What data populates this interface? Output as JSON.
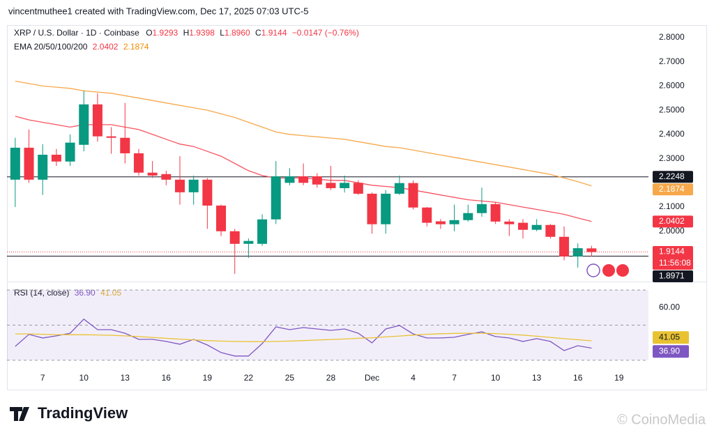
{
  "header": "vincentmuthee1 created with TradingView.com, Dec 17, 2025 07:03 UTC-5",
  "branding": "TradingView",
  "watermark": "© CoinoMedia",
  "chart_data": [
    {
      "type": "candlestick",
      "title": "XRP / U.S. Dollar · 1D · Coinbase",
      "ohlc": [
        {
          "label": "O",
          "value": "1.9293"
        },
        {
          "label": "H",
          "value": "1.9398"
        },
        {
          "label": "L",
          "value": "1.8960"
        },
        {
          "label": "C",
          "value": "1.9144"
        }
      ],
      "change": "−0.0147 (−0.76%)",
      "indicator": "EMA 20/50/100/200",
      "categories": [
        null,
        null,
        "7",
        null,
        null,
        "10",
        null,
        null,
        "13",
        null,
        null,
        "16",
        null,
        null,
        "19",
        null,
        null,
        "22",
        null,
        null,
        "25",
        null,
        null,
        "28",
        null,
        null,
        "Dec",
        null,
        null,
        "4",
        null,
        null,
        "7",
        null,
        null,
        "10",
        null,
        null,
        "13",
        null,
        null,
        "16",
        null,
        null,
        "19",
        null,
        null
      ],
      "open": [
        2.213,
        2.345,
        2.213,
        2.316,
        2.288,
        2.357,
        2.524,
        2.392,
        2.386,
        2.322,
        2.242,
        2.236,
        2.213,
        2.161,
        2.213,
        2.106,
        2.0,
        1.948,
        1.948,
        2.049,
        2.2,
        2.227,
        2.227,
        2.2,
        2.178,
        2.2,
        2.155,
        2.029,
        2.155,
        2.199,
        2.098,
        2.041,
        2.029,
        2.046,
        2.075,
        2.112,
        2.04,
        2.035,
        2.006,
        2.026,
        1.977,
        1.896,
        1.9293,
        null,
        null,
        null,
        null
      ],
      "high": [
        2.386,
        2.42,
        2.36,
        2.34,
        2.4,
        2.58,
        2.57,
        2.43,
        2.53,
        2.34,
        2.29,
        2.25,
        2.31,
        2.23,
        2.22,
        2.11,
        2.01,
        1.97,
        2.07,
        2.29,
        2.26,
        2.28,
        2.24,
        2.27,
        2.23,
        2.21,
        2.16,
        2.17,
        2.23,
        2.21,
        2.1,
        2.05,
        2.11,
        2.11,
        2.18,
        2.12,
        2.05,
        2.05,
        2.05,
        2.03,
        2.02,
        1.95,
        1.9398,
        null,
        null,
        null,
        null
      ],
      "low": [
        2.1,
        2.2,
        2.15,
        2.27,
        2.27,
        2.33,
        2.37,
        2.32,
        2.28,
        2.23,
        2.22,
        2.19,
        2.11,
        2.11,
        2.01,
        1.98,
        1.824,
        1.89,
        1.94,
        2.03,
        2.19,
        2.19,
        2.18,
        2.17,
        2.16,
        2.15,
        1.99,
        1.99,
        2.15,
        2.09,
        2.02,
        2.01,
        2.0,
        2.04,
        2.06,
        2.03,
        1.98,
        1.97,
        2.0,
        1.97,
        1.88,
        1.85,
        1.896,
        null,
        null,
        null,
        null
      ],
      "close": [
        2.345,
        2.213,
        2.316,
        2.288,
        2.366,
        2.524,
        2.392,
        2.386,
        2.322,
        2.242,
        2.23,
        2.213,
        2.161,
        2.213,
        2.106,
        2.0,
        1.948,
        1.96,
        2.049,
        2.227,
        2.227,
        2.2,
        2.193,
        2.178,
        2.2,
        2.155,
        2.029,
        2.155,
        2.199,
        2.098,
        2.035,
        2.029,
        2.046,
        2.075,
        2.112,
        2.04,
        2.029,
        2.006,
        2.026,
        1.977,
        1.896,
        1.93,
        1.9144,
        null,
        null,
        null,
        null
      ],
      "up_color": "#089981",
      "down_color": "#f23645",
      "series": [
        {
          "color": "#f7525f",
          "values": [
            2.475,
            2.46,
            2.45,
            2.44,
            2.43,
            2.44,
            2.44,
            2.44,
            2.43,
            2.42,
            2.4,
            2.38,
            2.36,
            2.35,
            2.33,
            2.31,
            2.28,
            2.25,
            2.23,
            2.22,
            2.22,
            2.22,
            2.215,
            2.21,
            2.21,
            2.2,
            2.19,
            2.185,
            2.18,
            2.17,
            2.16,
            2.15,
            2.14,
            2.13,
            2.125,
            2.12,
            2.11,
            2.1,
            2.09,
            2.08,
            2.07,
            2.055,
            2.0402,
            null,
            null,
            null,
            null
          ]
        },
        {
          "color": "#f7a84a",
          "values": [
            2.62,
            2.61,
            2.6,
            2.595,
            2.59,
            2.58,
            2.575,
            2.57,
            2.56,
            2.55,
            2.54,
            2.53,
            2.52,
            2.51,
            2.5,
            2.485,
            2.47,
            2.45,
            2.43,
            2.41,
            2.4,
            2.395,
            2.39,
            2.385,
            2.38,
            2.37,
            2.36,
            2.35,
            2.345,
            2.335,
            2.325,
            2.315,
            2.305,
            2.295,
            2.285,
            2.275,
            2.265,
            2.255,
            2.245,
            2.235,
            2.22,
            2.205,
            2.1874,
            null,
            null,
            null,
            null
          ]
        }
      ],
      "price_lines": [
        2.2248,
        1.8971
      ],
      "countdown": "11:56:08",
      "ylim": [
        1.795,
        2.84
      ],
      "yticks": [
        {
          "value": 2.8,
          "label": "2.8000"
        },
        {
          "value": 2.7,
          "label": "2.7000"
        },
        {
          "value": 2.6,
          "label": "2.6000"
        },
        {
          "value": 2.5,
          "label": "2.5000"
        },
        {
          "value": 2.4,
          "label": "2.4000"
        },
        {
          "value": 2.3,
          "label": "2.3000"
        },
        {
          "value": 2.1,
          "label": "2.1000"
        },
        {
          "value": 2.0,
          "label": "2.0000"
        }
      ]
    },
    {
      "type": "line",
      "title": "RSI (14, close)",
      "series": [
        {
          "color": "#7e57c2",
          "value_label": "36.90",
          "values": [
            37.9,
            44.7,
            42.7,
            43.9,
            45.4,
            53.4,
            47.4,
            47.4,
            45.4,
            41.9,
            41.9,
            40.7,
            39.1,
            41.9,
            38.7,
            34.4,
            32.4,
            32.4,
            39.5,
            49.0,
            47.4,
            48.6,
            47.8,
            47.0,
            47.8,
            45.4,
            39.9,
            47.8,
            49.8,
            45.0,
            42.7,
            42.7,
            43.1,
            44.7,
            46.2,
            43.5,
            42.7,
            40.7,
            42.3,
            40.7,
            35.5,
            38.3,
            36.9,
            null,
            null,
            null,
            null
          ]
        },
        {
          "color": "#e9c232",
          "value_label": "41.05",
          "values": [
            45.0,
            45.0,
            44.8,
            44.6,
            44.5,
            44.5,
            44.4,
            44.2,
            43.9,
            43.5,
            43.0,
            42.5,
            42.0,
            41.6,
            41.2,
            40.9,
            40.7,
            40.6,
            40.6,
            40.7,
            40.9,
            41.2,
            41.5,
            41.8,
            42.1,
            42.5,
            42.8,
            43.3,
            43.8,
            44.3,
            44.8,
            45.1,
            45.3,
            45.4,
            45.4,
            45.2,
            44.8,
            44.3,
            43.7,
            43.0,
            42.3,
            41.7,
            41.05,
            null,
            null,
            null,
            null
          ]
        }
      ],
      "levels": [
        70,
        50,
        30
      ],
      "ylim": [
        24,
        74
      ],
      "yticks": [
        {
          "value": 60,
          "label": "60.00"
        }
      ]
    }
  ]
}
